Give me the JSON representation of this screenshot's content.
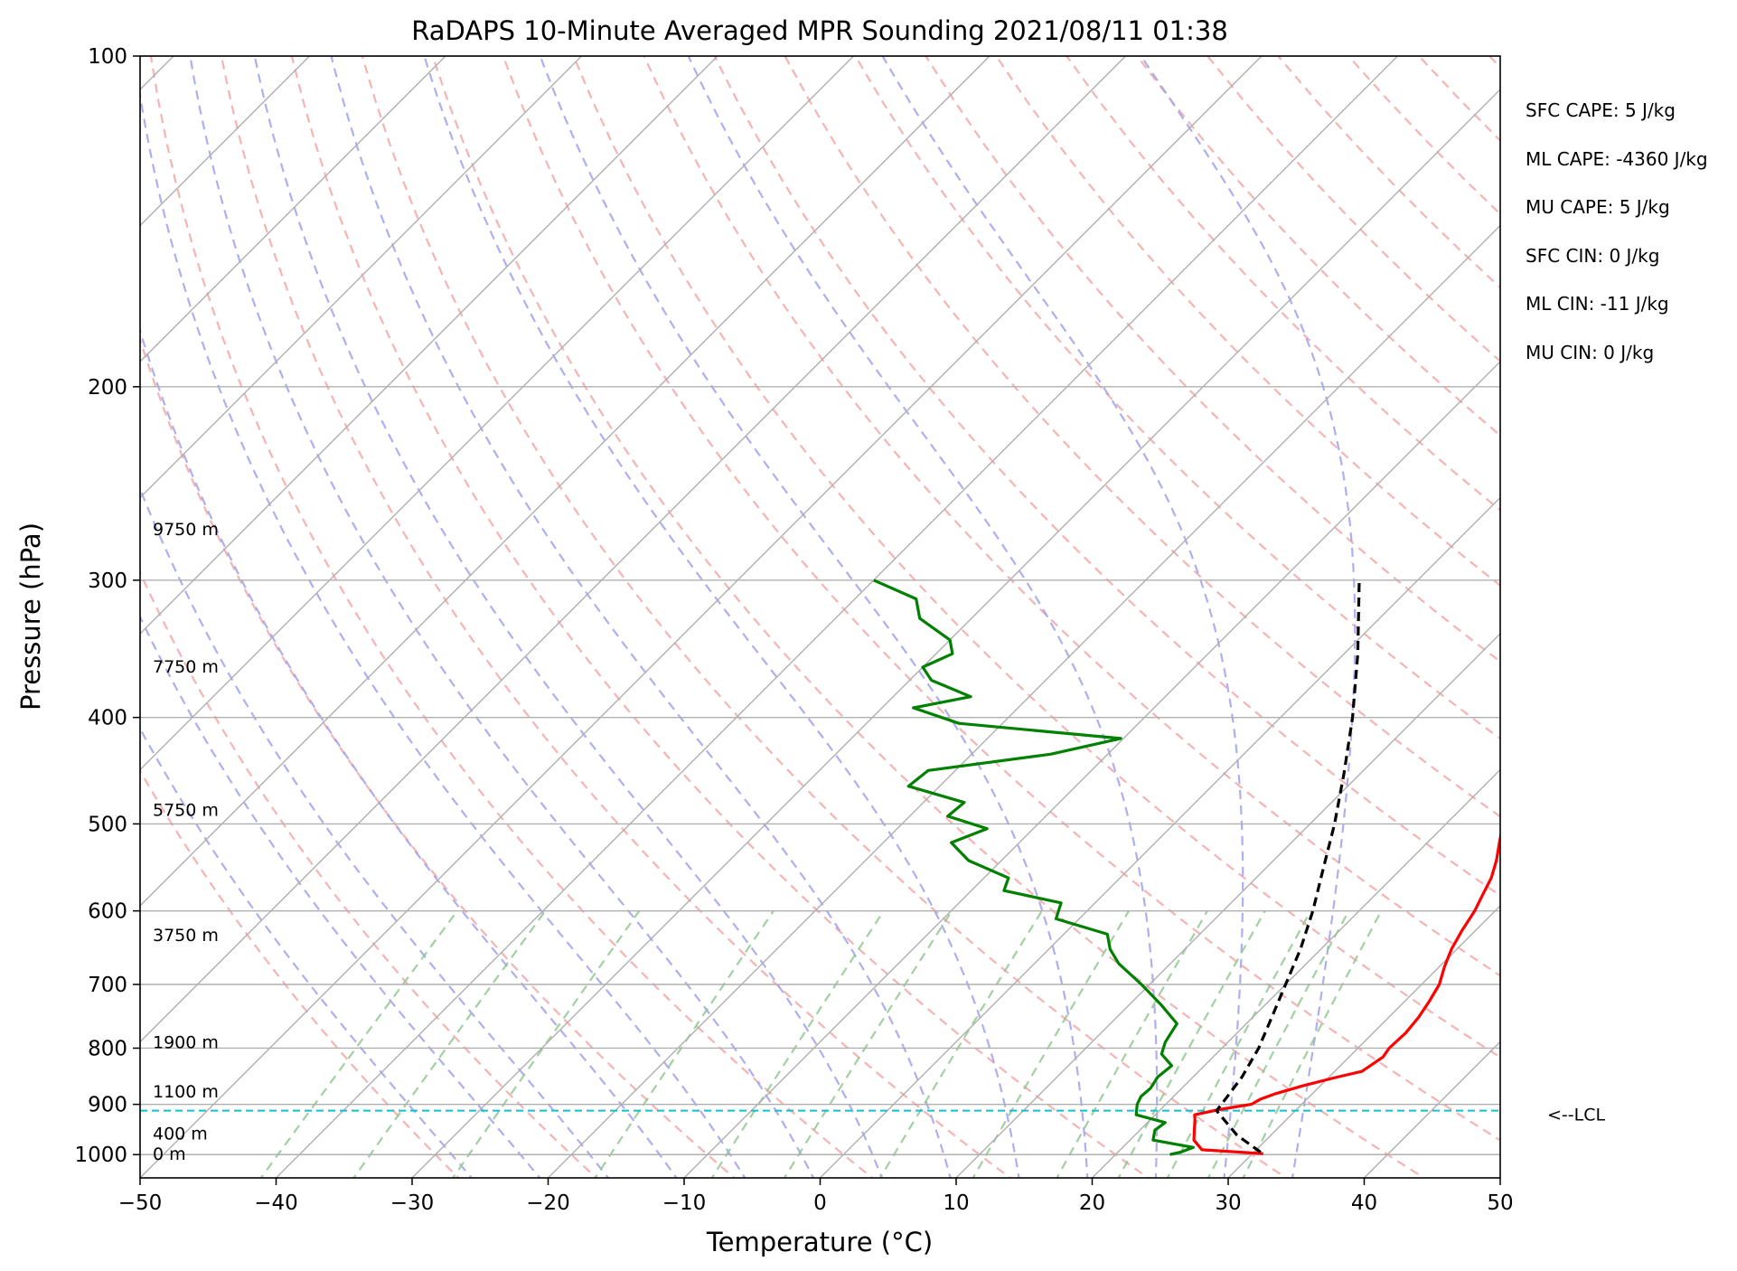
{
  "chart_data": {
    "type": "skew-t",
    "title": "RaDAPS 10-Minute Averaged MPR Sounding 2021/08/11 01:38",
    "xlabel": "Temperature (°C)",
    "ylabel": "Pressure (hPa)",
    "xlim": [
      -50,
      50
    ],
    "ylim": [
      1050,
      100
    ],
    "yscale": "log",
    "x_ticks": [
      -50,
      -40,
      -30,
      -20,
      -10,
      0,
      10,
      20,
      30,
      40,
      50
    ],
    "x_tick_labels": [
      "−50",
      "−40",
      "−30",
      "−20",
      "−10",
      "0",
      "10",
      "20",
      "30",
      "40",
      "50"
    ],
    "y_ticks": [
      100,
      200,
      300,
      400,
      500,
      600,
      700,
      800,
      900,
      1000
    ],
    "y_tick_labels": [
      "100",
      "200",
      "300",
      "400",
      "500",
      "600",
      "700",
      "800",
      "900",
      "1000"
    ],
    "skew": 45,
    "grid": true,
    "series": [
      {
        "color": "#ff0000",
        "points": [
          [
            300,
            12.1
          ],
          [
            320,
            13.5
          ],
          [
            340,
            14.7
          ],
          [
            360,
            16.2
          ],
          [
            380,
            17.2
          ],
          [
            400,
            18.5
          ],
          [
            420,
            20.0
          ],
          [
            440,
            21.1
          ],
          [
            460,
            22.2
          ],
          [
            480,
            23.1
          ],
          [
            500,
            24.2
          ],
          [
            520,
            25.3
          ],
          [
            540,
            26.4
          ],
          [
            560,
            27.3
          ],
          [
            580,
            27.9
          ],
          [
            600,
            28.5
          ],
          [
            625,
            29.0
          ],
          [
            650,
            29.6
          ],
          [
            675,
            30.4
          ],
          [
            700,
            31.3
          ],
          [
            725,
            31.8
          ],
          [
            750,
            32.2
          ],
          [
            775,
            32.4
          ],
          [
            800,
            32.3
          ],
          [
            815,
            32.5
          ],
          [
            840,
            32.0
          ],
          [
            850,
            30.6
          ],
          [
            865,
            28.8
          ],
          [
            880,
            27.3
          ],
          [
            890,
            26.6
          ],
          [
            900,
            26.3
          ],
          [
            910,
            24.3
          ],
          [
            920,
            22.9
          ],
          [
            930,
            23.3
          ],
          [
            950,
            24.0
          ],
          [
            970,
            24.7
          ],
          [
            990,
            26.0
          ],
          [
            998,
            30.8
          ]
        ]
      },
      {
        "color": "#008000",
        "points": [
          [
            300,
            -40.0
          ],
          [
            312,
            -35.5
          ],
          [
            325,
            -33.8
          ],
          [
            340,
            -30.0
          ],
          [
            350,
            -28.8
          ],
          [
            360,
            -30.0
          ],
          [
            370,
            -28.4
          ],
          [
            383,
            -24.3
          ],
          [
            392,
            -27.7
          ],
          [
            405,
            -23.2
          ],
          [
            418,
            -10.2
          ],
          [
            432,
            -14.2
          ],
          [
            447,
            -22.0
          ],
          [
            462,
            -22.3
          ],
          [
            478,
            -17.0
          ],
          [
            492,
            -17.2
          ],
          [
            505,
            -13.4
          ],
          [
            520,
            -15.0
          ],
          [
            540,
            -12.4
          ],
          [
            560,
            -8.2
          ],
          [
            575,
            -7.6
          ],
          [
            590,
            -2.5
          ],
          [
            610,
            -1.7
          ],
          [
            630,
            3.2
          ],
          [
            650,
            4.5
          ],
          [
            670,
            6.2
          ],
          [
            700,
            9.4
          ],
          [
            730,
            12.3
          ],
          [
            760,
            14.9
          ],
          [
            790,
            15.4
          ],
          [
            810,
            16.0
          ],
          [
            830,
            17.6
          ],
          [
            850,
            17.4
          ],
          [
            870,
            17.7
          ],
          [
            885,
            17.6
          ],
          [
            900,
            17.9
          ],
          [
            920,
            18.6
          ],
          [
            935,
            21.3
          ],
          [
            950,
            21.1
          ],
          [
            970,
            21.7
          ],
          [
            985,
            25.2
          ],
          [
            995,
            24.6
          ],
          [
            1000,
            24.0
          ]
        ]
      },
      {
        "color": "#000000",
        "style": "dashed",
        "points": [
          [
            995,
            30.5
          ],
          [
            960,
            27.5
          ],
          [
            912,
            24.2
          ],
          [
            900,
            24.1
          ],
          [
            850,
            23.6
          ],
          [
            800,
            22.7
          ],
          [
            750,
            21.4
          ],
          [
            700,
            20.0
          ],
          [
            650,
            18.5
          ],
          [
            600,
            16.6
          ],
          [
            550,
            14.3
          ],
          [
            500,
            11.8
          ],
          [
            450,
            8.8
          ],
          [
            400,
            5.3
          ],
          [
            350,
            1.0
          ],
          [
            300,
            -4.3
          ]
        ]
      }
    ],
    "height_labels": [
      {
        "text": "9750 m",
        "pressure": 270
      },
      {
        "text": "7750 m",
        "pressure": 360
      },
      {
        "text": "5750 m",
        "pressure": 486
      },
      {
        "text": "3750 m",
        "pressure": 632
      },
      {
        "text": "1900 m",
        "pressure": 791
      },
      {
        "text": "1100 m",
        "pressure": 877
      },
      {
        "text": "400 m",
        "pressure": 958
      },
      {
        "text": "0 m",
        "pressure": 1000
      }
    ],
    "lcl": {
      "pressure": 912,
      "label": "<--LCL"
    },
    "stats": [
      "SFC CAPE: 5 J/kg",
      "ML CAPE: -4360 J/kg",
      "MU CAPE: 5 J/kg",
      "SFC CIN: 0 J/kg",
      "ML CIN: -11 J/kg",
      "MU CIN: 0 J/kg"
    ],
    "colors": {
      "dry_adiabat": "#f4a0a0",
      "moist_adiabat": "#a0a0f0",
      "mixing_ratio": "#90c890",
      "lcl_line": "#17becf",
      "isobar_isotherm": "#b0b0b0"
    }
  }
}
